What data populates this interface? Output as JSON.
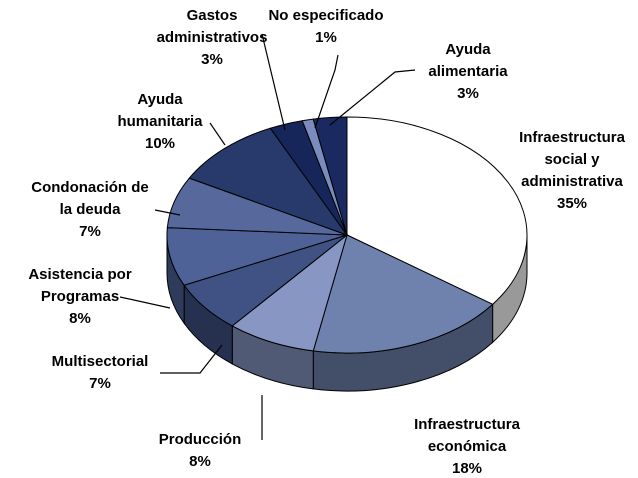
{
  "chart_data": {
    "type": "pie3d",
    "labels": [
      [
        "Infraestructura",
        "social y",
        "administrativa"
      ],
      [
        "Infraestructura",
        "económica"
      ],
      [
        "Producción"
      ],
      [
        "Multisectorial"
      ],
      [
        "Asistencia por",
        "Programas"
      ],
      [
        "Condonación de",
        "la deuda"
      ],
      [
        "Ayuda",
        "humanitaria"
      ],
      [
        "Gastos",
        "administrativos"
      ],
      [
        "No especificado"
      ],
      [
        "Ayuda",
        "alimentaria"
      ]
    ],
    "values": [
      35,
      18,
      8,
      7,
      8,
      7,
      10,
      3,
      1,
      3
    ],
    "value_labels": [
      "35%",
      "18%",
      "8%",
      "7%",
      "8%",
      "7%",
      "10%",
      "3%",
      "1%",
      "3%"
    ],
    "colors": [
      "#ffffff",
      "#6f82ad",
      "#8796c2",
      "#3f5283",
      "#4e6297",
      "#56689c",
      "#28396b",
      "#17265a",
      "#7a8bbd",
      "#1a2a60"
    ]
  }
}
